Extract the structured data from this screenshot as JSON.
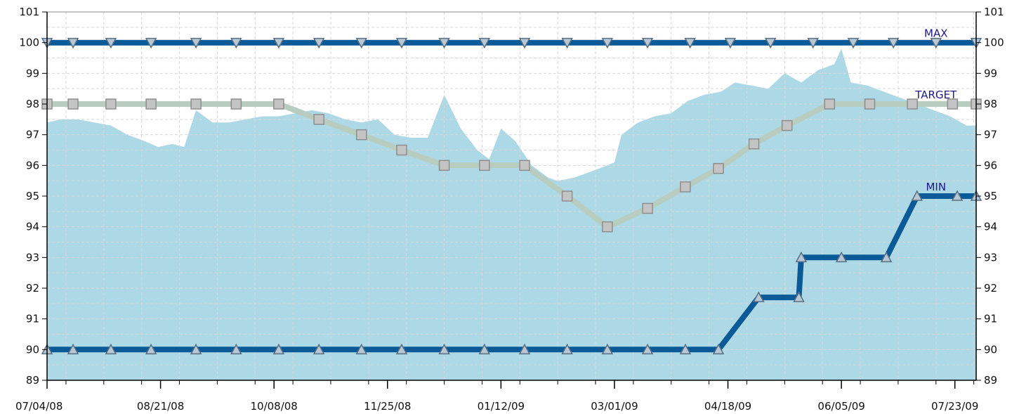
{
  "chart_data": {
    "type": "line",
    "title": "",
    "xlabel": "",
    "ylabel": "",
    "ylim": [
      89,
      101
    ],
    "yticks": [
      89,
      90,
      91,
      92,
      93,
      94,
      95,
      96,
      97,
      98,
      99,
      100,
      101
    ],
    "xlim": [
      "2008-07-04",
      "2009-08-01"
    ],
    "xtick_labels": [
      "07/04/08",
      "08/21/08",
      "10/08/08",
      "11/25/08",
      "01/12/09",
      "03/01/09",
      "04/18/09",
      "06/05/09",
      "07/23/09"
    ],
    "grid": true,
    "legend": "none",
    "area": {
      "color": "#add8e6",
      "points": [
        [
          "2008-07-04",
          97.4
        ],
        [
          "2008-07-10",
          97.5
        ],
        [
          "2008-07-17",
          97.5
        ],
        [
          "2008-07-24",
          97.4
        ],
        [
          "2008-07-31",
          97.3
        ],
        [
          "2008-08-07",
          97.0
        ],
        [
          "2008-08-14",
          96.8
        ],
        [
          "2008-08-20",
          96.6
        ],
        [
          "2008-08-26",
          96.7
        ],
        [
          "2008-08-31",
          96.6
        ],
        [
          "2008-09-05",
          97.8
        ],
        [
          "2008-09-12",
          97.4
        ],
        [
          "2008-09-19",
          97.4
        ],
        [
          "2008-09-26",
          97.5
        ],
        [
          "2008-10-03",
          97.6
        ],
        [
          "2008-10-10",
          97.6
        ],
        [
          "2008-10-17",
          97.7
        ],
        [
          "2008-10-24",
          97.8
        ],
        [
          "2008-10-31",
          97.7
        ],
        [
          "2008-11-07",
          97.5
        ],
        [
          "2008-11-14",
          97.4
        ],
        [
          "2008-11-21",
          97.5
        ],
        [
          "2008-11-28",
          97.0
        ],
        [
          "2008-12-05",
          96.9
        ],
        [
          "2008-12-12",
          96.9
        ],
        [
          "2008-12-19",
          98.3
        ],
        [
          "2008-12-26",
          97.2
        ],
        [
          "2009-01-02",
          96.5
        ],
        [
          "2009-01-07",
          96.2
        ],
        [
          "2009-01-12",
          97.2
        ],
        [
          "2009-01-18",
          96.8
        ],
        [
          "2009-01-25",
          96.0
        ],
        [
          "2009-02-01",
          95.6
        ],
        [
          "2009-02-05",
          95.5
        ],
        [
          "2009-02-12",
          95.6
        ],
        [
          "2009-02-19",
          95.8
        ],
        [
          "2009-02-26",
          96.0
        ],
        [
          "2009-03-01",
          96.1
        ],
        [
          "2009-03-04",
          97.0
        ],
        [
          "2009-03-11",
          97.4
        ],
        [
          "2009-03-18",
          97.6
        ],
        [
          "2009-03-25",
          97.7
        ],
        [
          "2009-04-01",
          98.1
        ],
        [
          "2009-04-08",
          98.3
        ],
        [
          "2009-04-15",
          98.4
        ],
        [
          "2009-04-21",
          98.7
        ],
        [
          "2009-04-28",
          98.6
        ],
        [
          "2009-05-05",
          98.5
        ],
        [
          "2009-05-12",
          99.0
        ],
        [
          "2009-05-19",
          98.7
        ],
        [
          "2009-05-26",
          99.1
        ],
        [
          "2009-06-02",
          99.3
        ],
        [
          "2009-06-05",
          99.8
        ],
        [
          "2009-06-09",
          98.7
        ],
        [
          "2009-06-16",
          98.6
        ],
        [
          "2009-06-23",
          98.4
        ],
        [
          "2009-06-30",
          98.2
        ],
        [
          "2009-07-07",
          98.0
        ],
        [
          "2009-07-14",
          97.8
        ],
        [
          "2009-07-21",
          97.6
        ],
        [
          "2009-07-28",
          97.3
        ],
        [
          "2009-08-01",
          97.3
        ]
      ]
    },
    "series": [
      {
        "name": "MAX",
        "color": "#0b5a98",
        "marker": "triangle-down",
        "points": [
          [
            "2008-07-04",
            100
          ],
          [
            "2008-07-15",
            100
          ],
          [
            "2008-07-31",
            100
          ],
          [
            "2008-08-17",
            100
          ],
          [
            "2008-09-05",
            100
          ],
          [
            "2008-09-22",
            100
          ],
          [
            "2008-10-10",
            100
          ],
          [
            "2008-10-27",
            100
          ],
          [
            "2008-11-14",
            100
          ],
          [
            "2008-12-01",
            100
          ],
          [
            "2008-12-19",
            100
          ],
          [
            "2009-01-05",
            100
          ],
          [
            "2009-01-22",
            100
          ],
          [
            "2009-02-09",
            100
          ],
          [
            "2009-02-26",
            100
          ],
          [
            "2009-03-15",
            100
          ],
          [
            "2009-04-02",
            100
          ],
          [
            "2009-04-19",
            100
          ],
          [
            "2009-05-06",
            100
          ],
          [
            "2009-05-24",
            100
          ],
          [
            "2009-06-10",
            100
          ],
          [
            "2009-06-27",
            100
          ],
          [
            "2009-07-15",
            100
          ],
          [
            "2009-08-01",
            100
          ]
        ]
      },
      {
        "name": "TARGET",
        "color": "#b9ccc0",
        "marker": "square",
        "points": [
          [
            "2008-07-04",
            98
          ],
          [
            "2008-07-15",
            98
          ],
          [
            "2008-07-31",
            98
          ],
          [
            "2008-08-17",
            98
          ],
          [
            "2008-09-05",
            98
          ],
          [
            "2008-09-22",
            98
          ],
          [
            "2008-10-10",
            98
          ],
          [
            "2008-10-27",
            97.5
          ],
          [
            "2008-11-14",
            97
          ],
          [
            "2008-12-01",
            96.5
          ],
          [
            "2008-12-19",
            96
          ],
          [
            "2009-01-05",
            96
          ],
          [
            "2009-01-22",
            96
          ],
          [
            "2009-02-09",
            95
          ],
          [
            "2009-02-26",
            94
          ],
          [
            "2009-03-15",
            94.6
          ],
          [
            "2009-03-31",
            95.3
          ],
          [
            "2009-04-14",
            95.9
          ],
          [
            "2009-04-29",
            96.7
          ],
          [
            "2009-05-13",
            97.3
          ],
          [
            "2009-05-31",
            98
          ],
          [
            "2009-06-17",
            98
          ],
          [
            "2009-07-05",
            98
          ],
          [
            "2009-07-22",
            98
          ],
          [
            "2009-08-01",
            98
          ]
        ]
      },
      {
        "name": "MIN",
        "color": "#0b5a98",
        "marker": "triangle-up",
        "points": [
          [
            "2008-07-04",
            90
          ],
          [
            "2008-07-15",
            90
          ],
          [
            "2008-07-31",
            90
          ],
          [
            "2008-08-17",
            90
          ],
          [
            "2008-09-05",
            90
          ],
          [
            "2008-09-22",
            90
          ],
          [
            "2008-10-10",
            90
          ],
          [
            "2008-10-27",
            90
          ],
          [
            "2008-11-14",
            90
          ],
          [
            "2008-12-01",
            90
          ],
          [
            "2008-12-19",
            90
          ],
          [
            "2009-01-05",
            90
          ],
          [
            "2009-01-22",
            90
          ],
          [
            "2009-02-09",
            90
          ],
          [
            "2009-02-26",
            90
          ],
          [
            "2009-03-15",
            90
          ],
          [
            "2009-03-31",
            90
          ],
          [
            "2009-04-14",
            90
          ],
          [
            "2009-05-01",
            91.7
          ],
          [
            "2009-05-18",
            91.7
          ],
          [
            "2009-05-19",
            93
          ],
          [
            "2009-06-05",
            93
          ],
          [
            "2009-06-24",
            93
          ],
          [
            "2009-07-07",
            95
          ],
          [
            "2009-07-24",
            95
          ],
          [
            "2009-08-01",
            95
          ]
        ]
      }
    ],
    "labels": [
      {
        "text": "MAX",
        "at": [
          "2009-07-15",
          100
        ]
      },
      {
        "text": "TARGET",
        "at": [
          "2009-07-15",
          98
        ]
      },
      {
        "text": "MIN",
        "at": [
          "2009-07-15",
          95
        ]
      }
    ]
  }
}
